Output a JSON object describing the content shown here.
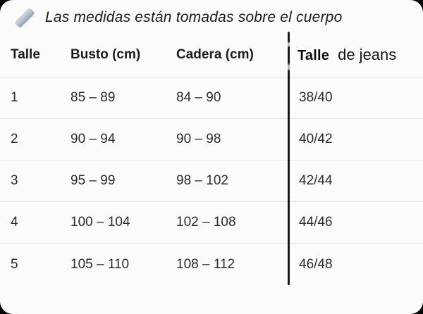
{
  "card": {
    "title": "Las medidas están tomadas sobre el cuerpo"
  },
  "table": {
    "headers": {
      "talle": "Talle",
      "busto": "Busto (cm)",
      "cadera": "Cadera (cm)",
      "jeans_bold": "Talle",
      "jeans_rest": "de jeans"
    },
    "rows": [
      {
        "talle": "1",
        "busto": "85 – 89",
        "cadera": "84 – 90",
        "jeans": "38/40"
      },
      {
        "talle": "2",
        "busto": "90 – 94",
        "cadera": "90 – 98",
        "jeans": "40/42"
      },
      {
        "talle": "3",
        "busto": "95 – 99",
        "cadera": "98 – 102",
        "jeans": "42/44"
      },
      {
        "talle": "4",
        "busto": "100 – 104",
        "cadera": "102 – 108",
        "jeans": "44/46"
      },
      {
        "talle": "5",
        "busto": "105 – 110",
        "cadera": "108 – 112",
        "jeans": "46/48"
      }
    ]
  },
  "colors": {
    "card_background": "#fbfbfc",
    "outer_background": "#000000",
    "header_text": "#1c1c1e",
    "body_text": "#2b2b2d",
    "separator": "#e5e5e7",
    "divider_line": "#1a1a1a",
    "ruler_icon_silver": "#b7c2d2"
  }
}
